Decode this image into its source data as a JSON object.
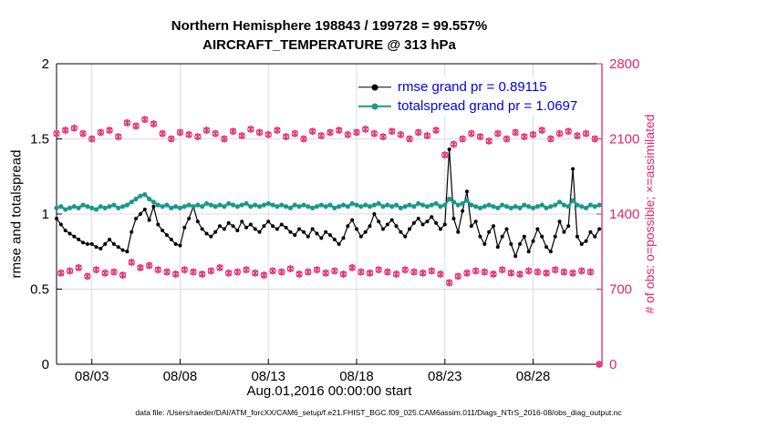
{
  "title": "Northern Hemisphere 198843 / 199728 = 99.557%",
  "subtitle": "AIRCRAFT_TEMPERATURE @ 313 hPa",
  "xlabel": "Aug.01,2016 00:00:00 start",
  "ylabel_left": "rmse and totalspread",
  "ylabel_right": "# of obs: o=possible; ×=assimilated",
  "caption": "data file: /Users/raeder/DAI/ATM_forcXX/CAM6_setup/f.e21.FHIST_BGC.f09_025.CAM6assim.011/Diags_NTrS_2016-08/obs_diag_output.nc",
  "colors": {
    "obs_pink": "#e3256b",
    "spread_teal": "#1a9988",
    "rmse_black": "#000000",
    "legend_text_blue": "#0000ee",
    "grid_gray": "#dcdcdc"
  },
  "chart_data": {
    "type": "line",
    "title": "Northern Hemisphere 198843 / 199728 = 99.557%",
    "subtitle": "AIRCRAFT_TEMPERATURE @ 313 hPa",
    "xlabel": "Aug.01,2016 00:00:00 start",
    "ylabel_left": "rmse and totalspread",
    "ylabel_right": "# of obs: o=possible; ×=assimilated",
    "x_range": [
      1,
      31.9
    ],
    "ylim_left": [
      0,
      2
    ],
    "ylim_right": [
      0,
      2800
    ],
    "grid": true,
    "legend_position": "top-right-inside",
    "x_ticks": {
      "values": [
        3,
        8,
        13,
        18,
        23,
        28
      ],
      "labels": [
        "08/03",
        "08/08",
        "08/13",
        "08/18",
        "08/23",
        "08/28"
      ]
    },
    "y_ticks_left": {
      "values": [
        0,
        0.5,
        1,
        1.5,
        2
      ],
      "labels": [
        "0",
        "0.5",
        "1",
        "1.5",
        "2"
      ]
    },
    "y_ticks_right": {
      "values": [
        0,
        700,
        1400,
        2100,
        2800
      ],
      "labels": [
        "0",
        "700",
        "1400",
        "2100",
        "2800"
      ]
    },
    "t_start": 1.0,
    "t_step": 0.25,
    "n_points": 124,
    "series": [
      {
        "name": "rmse",
        "legend": "rmse grand pr = 0.89115",
        "axis": "left",
        "color": "#000000",
        "marker": "dot",
        "values": [
          0.97,
          0.93,
          0.89,
          0.87,
          0.85,
          0.83,
          0.81,
          0.8,
          0.8,
          0.78,
          0.77,
          0.8,
          0.83,
          0.8,
          0.78,
          0.76,
          0.75,
          0.88,
          0.97,
          1.0,
          1.03,
          0.96,
          1.05,
          0.93,
          0.89,
          0.86,
          0.83,
          0.8,
          0.79,
          0.91,
          0.97,
          1.05,
          0.95,
          0.9,
          0.87,
          0.85,
          0.88,
          0.92,
          0.9,
          0.94,
          0.92,
          0.89,
          0.95,
          0.91,
          0.93,
          0.9,
          0.88,
          0.92,
          0.95,
          0.92,
          0.9,
          0.93,
          0.91,
          0.88,
          0.86,
          0.9,
          0.88,
          0.85,
          0.9,
          0.87,
          0.84,
          0.88,
          0.86,
          0.83,
          0.8,
          0.84,
          0.92,
          0.96,
          0.9,
          0.85,
          0.88,
          0.92,
          1.0,
          0.95,
          0.9,
          0.93,
          0.96,
          0.92,
          0.88,
          0.85,
          0.9,
          0.94,
          0.97,
          0.93,
          0.95,
          0.98,
          0.94,
          0.9,
          0.93,
          1.43,
          0.97,
          0.88,
          1.02,
          1.15,
          0.92,
          0.95,
          0.85,
          0.8,
          0.88,
          0.92,
          0.78,
          0.85,
          0.9,
          0.8,
          0.72,
          0.8,
          0.85,
          0.75,
          0.82,
          0.9,
          0.85,
          0.78,
          0.75,
          0.85,
          0.95,
          0.88,
          0.92,
          1.3,
          0.85,
          0.8,
          0.82,
          0.88,
          0.85,
          0.9
        ]
      },
      {
        "name": "totalspread",
        "legend": "totalspread grand pr = 1.0697",
        "axis": "left",
        "color": "#1a9988",
        "marker": "dot",
        "values": [
          1.04,
          1.05,
          1.03,
          1.04,
          1.05,
          1.04,
          1.06,
          1.05,
          1.04,
          1.03,
          1.05,
          1.04,
          1.05,
          1.06,
          1.04,
          1.05,
          1.06,
          1.08,
          1.1,
          1.12,
          1.13,
          1.1,
          1.08,
          1.06,
          1.05,
          1.06,
          1.04,
          1.05,
          1.04,
          1.05,
          1.06,
          1.05,
          1.06,
          1.05,
          1.07,
          1.06,
          1.05,
          1.06,
          1.05,
          1.07,
          1.06,
          1.05,
          1.06,
          1.07,
          1.05,
          1.06,
          1.05,
          1.06,
          1.07,
          1.06,
          1.05,
          1.06,
          1.05,
          1.04,
          1.06,
          1.05,
          1.06,
          1.05,
          1.04,
          1.05,
          1.06,
          1.05,
          1.06,
          1.04,
          1.05,
          1.06,
          1.05,
          1.07,
          1.06,
          1.05,
          1.06,
          1.05,
          1.06,
          1.07,
          1.05,
          1.06,
          1.05,
          1.06,
          1.04,
          1.05,
          1.06,
          1.05,
          1.07,
          1.06,
          1.05,
          1.06,
          1.07,
          1.05,
          1.06,
          1.1,
          1.08,
          1.06,
          1.07,
          1.09,
          1.06,
          1.05,
          1.04,
          1.05,
          1.06,
          1.05,
          1.04,
          1.06,
          1.05,
          1.04,
          1.05,
          1.04,
          1.06,
          1.05,
          1.04,
          1.05,
          1.06,
          1.04,
          1.05,
          1.06,
          1.08,
          1.06,
          1.05,
          1.09,
          1.06,
          1.05,
          1.04,
          1.06,
          1.05,
          1.06
        ]
      },
      {
        "name": "obs_count",
        "legend": null,
        "axis": "right",
        "color": "#e3256b",
        "marker": "circle-asterisk",
        "values": [
          2150,
          850,
          2180,
          870,
          2200,
          900,
          2150,
          820,
          2100,
          880,
          2160,
          850,
          2180,
          860,
          2120,
          830,
          2250,
          950,
          2220,
          900,
          2280,
          920,
          2240,
          880,
          2150,
          860,
          2100,
          840,
          2160,
          880,
          2140,
          860,
          2120,
          840,
          2180,
          870,
          2150,
          900,
          2100,
          850,
          2170,
          860,
          2130,
          880,
          2190,
          850,
          2160,
          830,
          2140,
          870,
          2180,
          860,
          2120,
          890,
          2150,
          840,
          2100,
          860,
          2170,
          880,
          2130,
          850,
          2160,
          870,
          2180,
          840,
          2140,
          900,
          2160,
          860,
          2190,
          850,
          2150,
          880,
          2120,
          860,
          2170,
          840,
          2140,
          880,
          2100,
          860,
          2160,
          850,
          2130,
          870,
          2180,
          840,
          1950,
          760,
          2050,
          820,
          2100,
          850,
          2150,
          870,
          2120,
          860,
          2080,
          840,
          2150,
          880,
          2100,
          850,
          2160,
          840,
          2120,
          870,
          2140,
          860,
          2180,
          850,
          2100,
          880,
          2150,
          860,
          2170,
          850,
          2130,
          870,
          2150,
          860,
          2100,
          0
        ]
      }
    ]
  }
}
